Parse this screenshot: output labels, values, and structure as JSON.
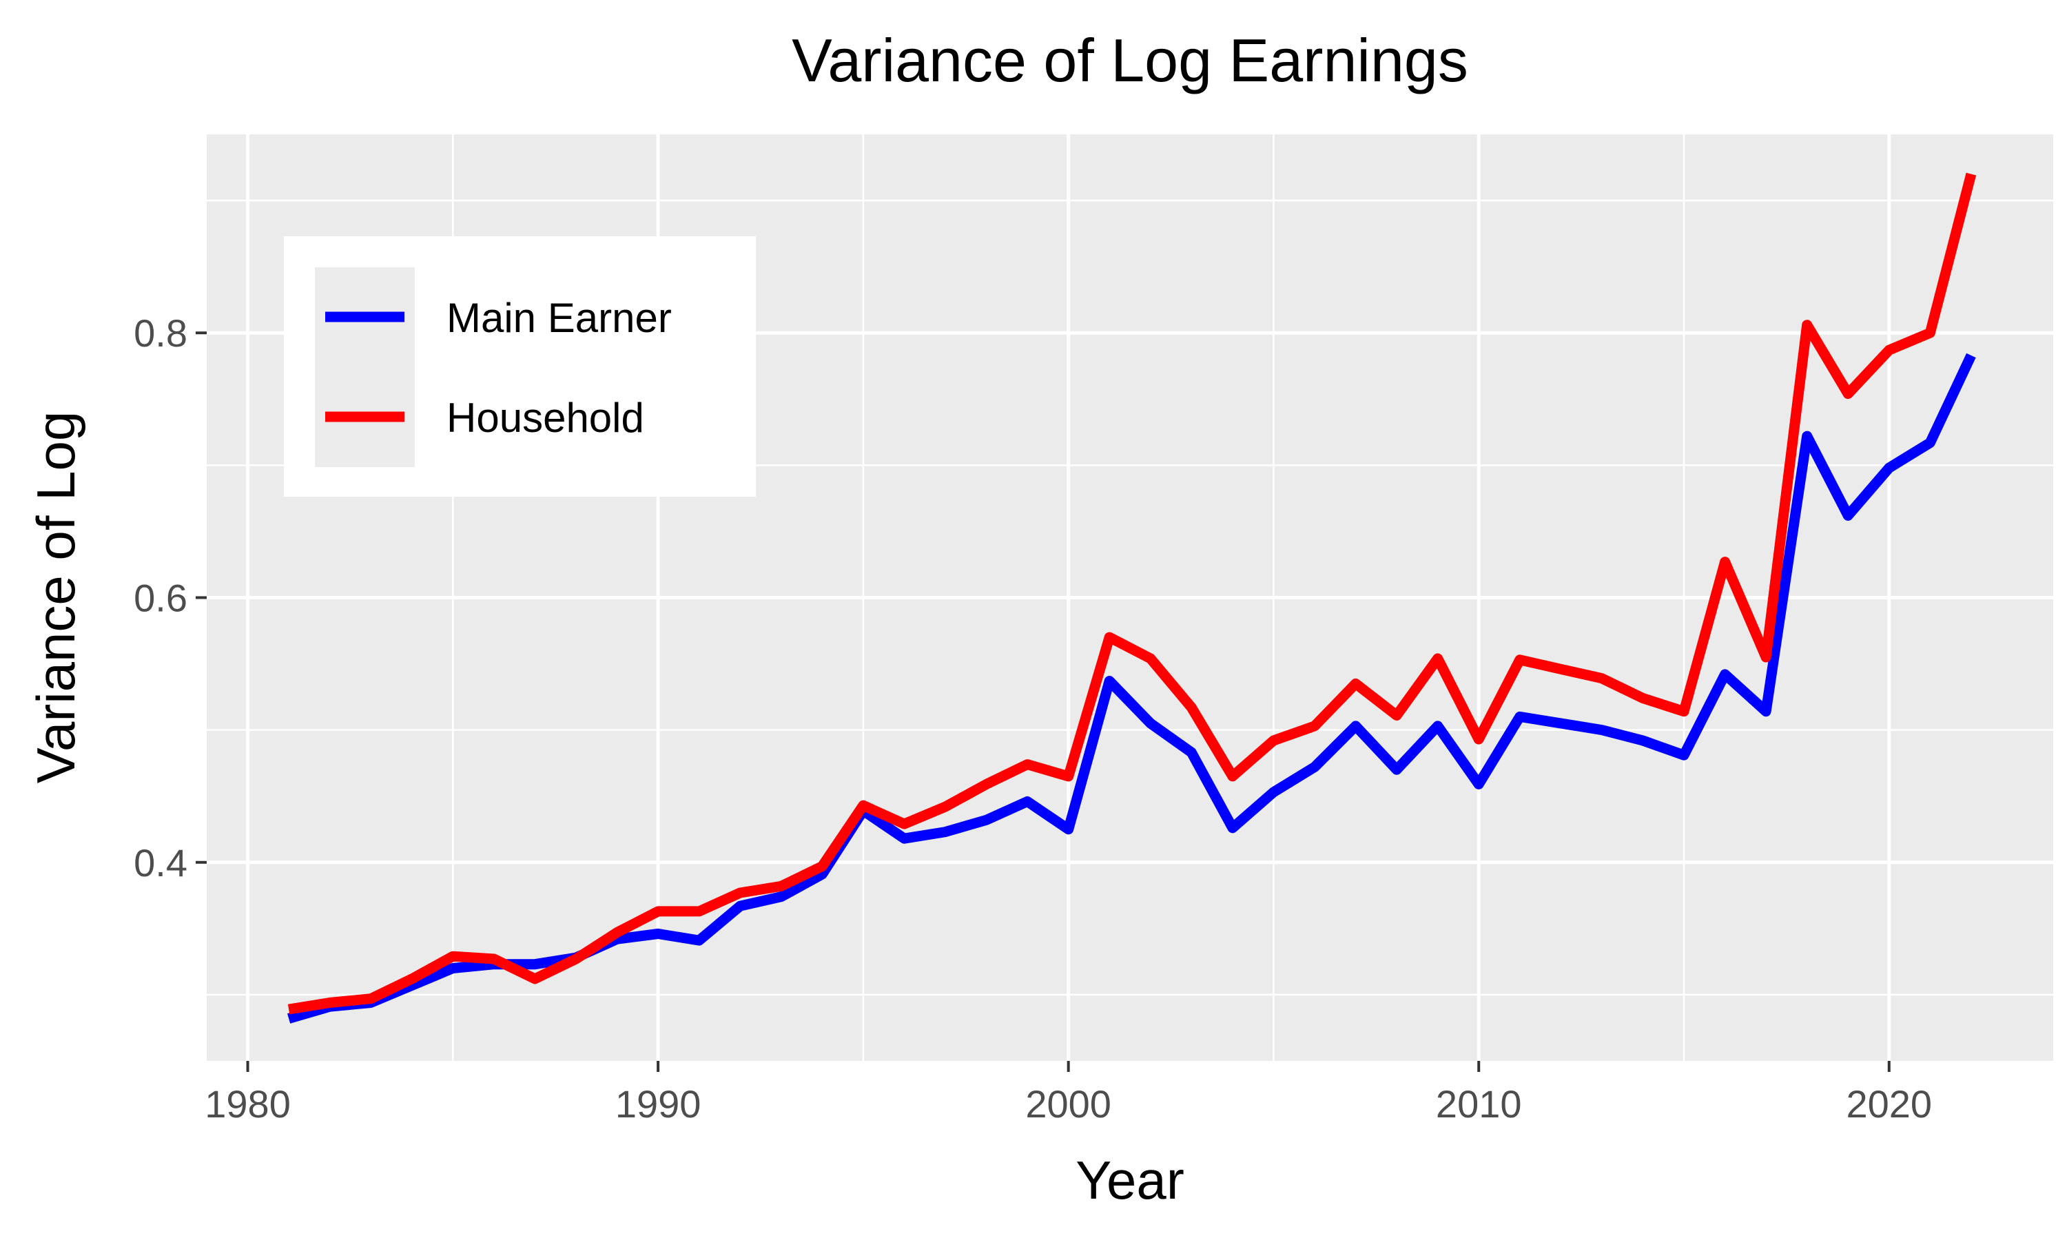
{
  "chart_data": {
    "type": "line",
    "title": "Variance of Log Earnings",
    "xlabel": "Year",
    "ylabel": "Variance of Log",
    "xlim": [
      1979,
      2024
    ],
    "ylim": [
      0.25,
      0.95
    ],
    "x_ticks": [
      1980,
      1990,
      2000,
      2010,
      2020
    ],
    "x_minor": [
      1985,
      1995,
      2005,
      2015
    ],
    "y_ticks": [
      0.4,
      0.6,
      0.8
    ],
    "y_minor": [
      0.3,
      0.5,
      0.7,
      0.9
    ],
    "grid": true,
    "legend_position": "top-left",
    "x": [
      1981,
      1982,
      1983,
      1984,
      1985,
      1986,
      1987,
      1988,
      1989,
      1990,
      1991,
      1992,
      1993,
      1994,
      1995,
      1996,
      1997,
      1998,
      1999,
      2000,
      2001,
      2002,
      2003,
      2004,
      2005,
      2006,
      2007,
      2008,
      2009,
      2010,
      2011,
      2012,
      2013,
      2014,
      2015,
      2016,
      2017,
      2018,
      2019,
      2020,
      2021,
      2022
    ],
    "series": [
      {
        "name": "Main Earner",
        "color": "#0000ff",
        "values": [
          0.282,
          0.291,
          0.294,
          0.307,
          0.32,
          0.323,
          0.323,
          0.328,
          0.342,
          0.346,
          0.341,
          0.367,
          0.374,
          0.391,
          0.439,
          0.418,
          0.423,
          0.432,
          0.446,
          0.425,
          0.537,
          0.505,
          0.483,
          0.426,
          0.453,
          0.472,
          0.503,
          0.47,
          0.503,
          0.459,
          0.51,
          0.505,
          0.5,
          0.492,
          0.481,
          0.542,
          0.514,
          0.722,
          0.662,
          0.698,
          0.717,
          0.783
        ]
      },
      {
        "name": "Household",
        "color": "#ff0000",
        "values": [
          0.289,
          0.294,
          0.297,
          0.312,
          0.329,
          0.327,
          0.312,
          0.327,
          0.347,
          0.363,
          0.363,
          0.377,
          0.382,
          0.397,
          0.443,
          0.429,
          0.442,
          0.459,
          0.474,
          0.465,
          0.57,
          0.554,
          0.517,
          0.465,
          0.492,
          0.503,
          0.535,
          0.511,
          0.554,
          0.493,
          0.553,
          0.546,
          0.539,
          0.524,
          0.514,
          0.627,
          0.555,
          0.806,
          0.754,
          0.787,
          0.8,
          0.92
        ]
      }
    ]
  }
}
